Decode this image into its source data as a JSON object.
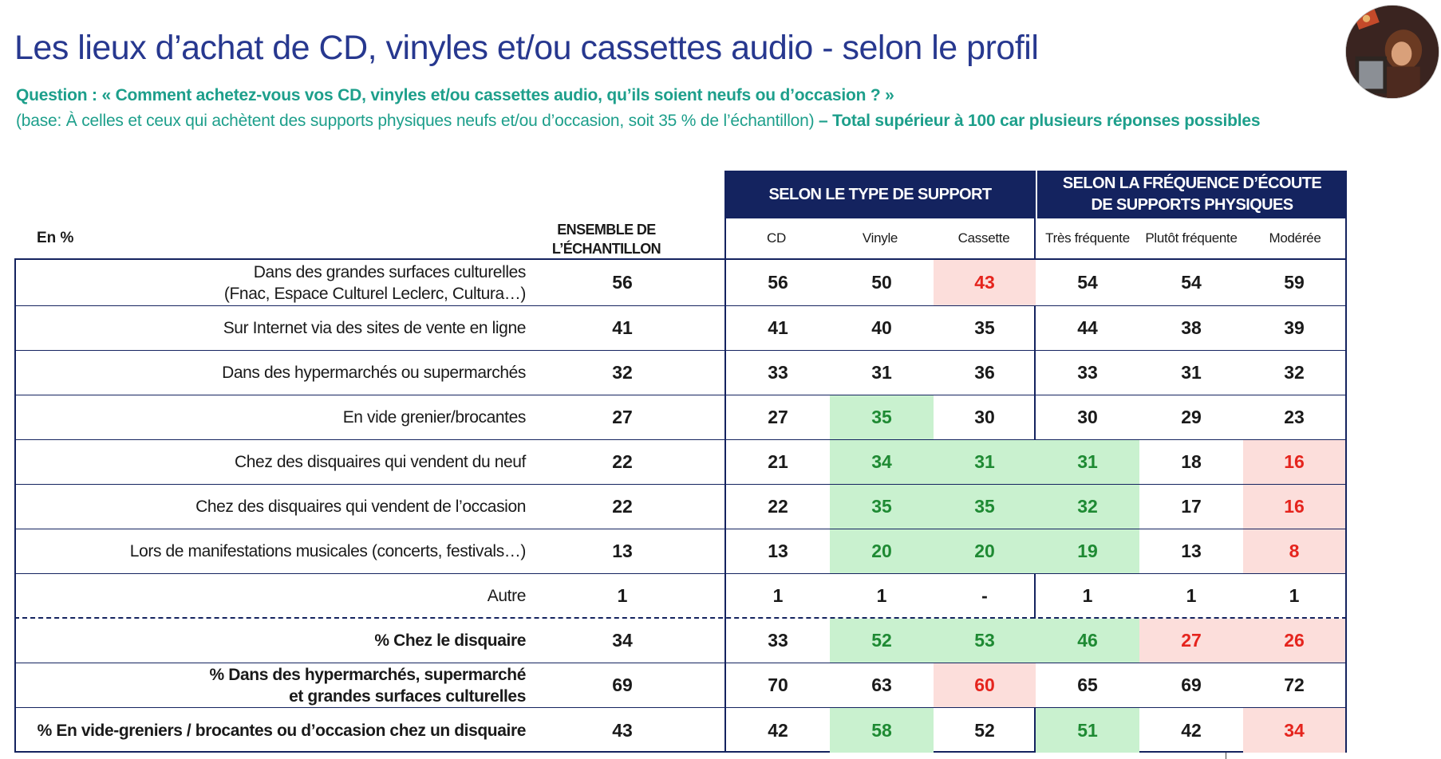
{
  "title": "Les lieux d’achat de CD, vinyles et/ou cassettes audio - selon le profil",
  "question": "Question : « Comment achetez-vous vos CD, vinyles et/ou cassettes audio, qu’ils soient neufs ou d’occasion ?  »",
  "base_text": "(base: À celles et ceux qui achètent des supports physiques neufs et/ou d’occasion, soit 35 % de l’échantillon)",
  "base_note": " – Total supérieur à 100 car plusieurs réponses possibles",
  "table": {
    "unit_label": "En %",
    "total_header": "ENSEMBLE DE L’ÉCHANTILLON",
    "group1_header": "SELON LE TYPE DE SUPPORT",
    "group2_header_line1": "SELON LA FRÉQUENCE D’ÉCOUTE",
    "group2_header_line2": "DE SUPPORTS PHYSIQUES",
    "columns": [
      "CD",
      "Vinyle",
      "Cassette",
      "Très fréquente",
      "Plutôt fréquente",
      "Modérée"
    ],
    "highlight_colors": {
      "positive_bg": "#c9f1cf",
      "positive_text": "#1e8a33",
      "negative_bg": "#fcdedb",
      "negative_text": "#e5241d",
      "header_bg": "#14235f"
    },
    "rows": [
      {
        "label": "Dans des grandes surfaces culturelles",
        "label2": "(Fnac, Espace Culturel Leclerc, Cultura…)",
        "total": "56",
        "values": [
          "56",
          "50",
          "43",
          "54",
          "54",
          "59"
        ],
        "flags": [
          "",
          "",
          "neg",
          "",
          "",
          ""
        ]
      },
      {
        "label": "Sur Internet via des sites de vente en ligne",
        "label2": "",
        "total": "41",
        "values": [
          "41",
          "40",
          "35",
          "44",
          "38",
          "39"
        ],
        "flags": [
          "",
          "",
          "",
          "",
          "",
          ""
        ]
      },
      {
        "label": "Dans des hypermarchés ou supermarchés",
        "label2": "",
        "total": "32",
        "values": [
          "33",
          "31",
          "36",
          "33",
          "31",
          "32"
        ],
        "flags": [
          "",
          "",
          "",
          "",
          "",
          ""
        ]
      },
      {
        "label": "En vide grenier/brocantes",
        "label2": "",
        "total": "27",
        "values": [
          "27",
          "35",
          "30",
          "30",
          "29",
          "23"
        ],
        "flags": [
          "",
          "pos",
          "",
          "",
          "",
          ""
        ]
      },
      {
        "label": "Chez des disquaires qui vendent du neuf",
        "label2": "",
        "total": "22",
        "values": [
          "21",
          "34",
          "31",
          "31",
          "18",
          "16"
        ],
        "flags": [
          "",
          "pos",
          "pos",
          "pos",
          "",
          "neg"
        ]
      },
      {
        "label": "Chez des disquaires qui vendent de l’occasion",
        "label2": "",
        "total": "22",
        "values": [
          "22",
          "35",
          "35",
          "32",
          "17",
          "16"
        ],
        "flags": [
          "",
          "pos",
          "pos",
          "pos",
          "",
          "neg"
        ]
      },
      {
        "label": "Lors de manifestations musicales (concerts, festivals…)",
        "label2": "",
        "total": "13",
        "values": [
          "13",
          "20",
          "20",
          "19",
          "13",
          "8"
        ],
        "flags": [
          "",
          "pos",
          "pos",
          "pos",
          "",
          "neg"
        ]
      },
      {
        "label": "Autre",
        "label2": "",
        "total": "1",
        "values": [
          "1",
          "1",
          "-",
          "1",
          "1",
          "1"
        ],
        "flags": [
          "",
          "",
          "",
          "",
          "",
          ""
        ]
      },
      {
        "label": "% Chez le disquaire",
        "label2": "",
        "total": "34",
        "bold": true,
        "values": [
          "33",
          "52",
          "53",
          "46",
          "27",
          "26"
        ],
        "flags": [
          "",
          "pos",
          "pos",
          "pos",
          "neg",
          "neg"
        ]
      },
      {
        "label": "% Dans des hypermarchés, supermarché",
        "label2": "et grandes surfaces culturelles",
        "total": "69",
        "bold": true,
        "values": [
          "70",
          "63",
          "60",
          "65",
          "69",
          "72"
        ],
        "flags": [
          "",
          "",
          "neg",
          "",
          "",
          ""
        ]
      },
      {
        "label": "% En vide-greniers / brocantes ou d’occasion chez un disquaire",
        "label2": "",
        "total": "43",
        "bold": true,
        "values": [
          "42",
          "58",
          "52",
          "51",
          "42",
          "34"
        ],
        "flags": [
          "",
          "pos",
          "",
          "pos",
          "",
          "neg"
        ]
      }
    ]
  }
}
